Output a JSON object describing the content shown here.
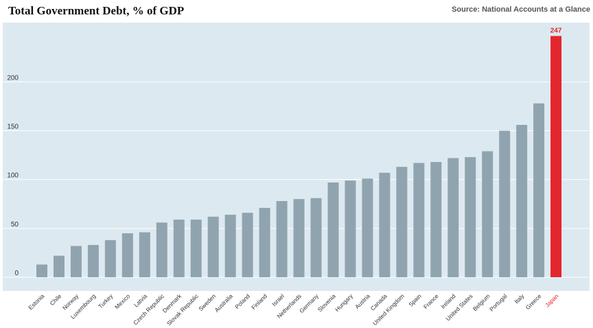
{
  "chart_data": {
    "type": "bar",
    "title": "Total Government Debt, % of GDP",
    "source": "Source: National Accounts at a Glance",
    "xlabel": "",
    "ylabel": "",
    "ylim": [
      0,
      250
    ],
    "yticks": [
      0,
      50,
      100,
      150,
      200
    ],
    "grid": true,
    "categories": [
      "Estonia",
      "Chile",
      "Norway",
      "Luxembourg",
      "Turkey",
      "Mexico",
      "Latvia",
      "Czech Republic",
      "Denmark",
      "Slovak Republic",
      "Sweden",
      "Australia",
      "Poland",
      "Finland",
      "Israel",
      "Netherlands",
      "Germany",
      "Slovenia",
      "Hungary",
      "Austria",
      "Canada",
      "United Kingdom",
      "Spain",
      "France",
      "Ireland",
      "United States",
      "Belgium",
      "Portugal",
      "Italy",
      "Greece",
      "Japan"
    ],
    "values": [
      13,
      22,
      32,
      33,
      38,
      45,
      46,
      56,
      59,
      59,
      62,
      64,
      66,
      71,
      78,
      80,
      81,
      97,
      99,
      101,
      107,
      113,
      117,
      118,
      122,
      123,
      129,
      150,
      156,
      178,
      247
    ],
    "highlight": {
      "category": "Japan",
      "label": "247"
    },
    "colors": {
      "bar": "#90a4b0",
      "highlight": "#e3262c",
      "plot_bg": "#dde9f0",
      "grid": "#ffffff"
    }
  }
}
